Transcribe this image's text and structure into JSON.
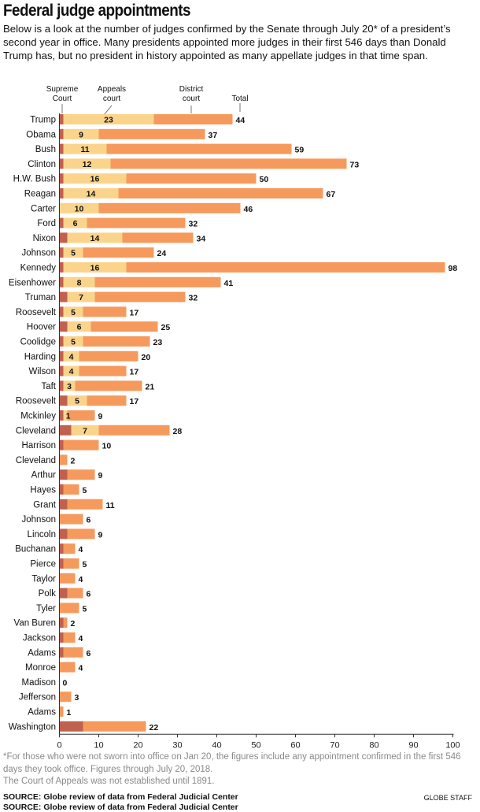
{
  "title": "Federal judge appointments",
  "subtitle": "Below is a look at the number of judges confirmed by the Senate through July 20* of a president’s second year in office. Many presidents appointed more judges in their first 546 days than Donald Trump has, but no president in history appointed as many appellate judges in that time span.",
  "footnote": "*For those who were not sworn into office on Jan 20, the figures include any appointment confirmed in the first 546 days they took office. Figures through July 20, 2018.\nThe Court of Appeals was not established until 1891.",
  "source": "SOURCE: Globe review of data from Federal Judicial Center",
  "source_clipped": "SOURCE: Globe review of data from Federal Judicial Center",
  "credit": "GLOBE STAFF",
  "colors": {
    "supreme": "#c0614d",
    "appeals": "#fbd48c",
    "district": "#f59a5c",
    "axis": "#333333"
  },
  "chart_data": {
    "type": "bar",
    "orientation": "horizontal",
    "stacked": true,
    "title": "Federal judge appointments",
    "column_headers": {
      "supreme": "Supreme\nCourt",
      "appeals": "Appeals\ncourt",
      "district": "District\ncourt",
      "total": "Total"
    },
    "xlim": [
      0,
      100
    ],
    "xticks": [
      0,
      10,
      20,
      30,
      40,
      50,
      60,
      70,
      80,
      90,
      100
    ],
    "categories": [
      "Trump",
      "Obama",
      "Bush",
      "Clinton",
      "H.W. Bush",
      "Reagan",
      "Carter",
      "Ford",
      "Nixon",
      "Johnson",
      "Kennedy",
      "Eisenhower",
      "Truman",
      "Roosevelt",
      "Hoover",
      "Coolidge",
      "Harding",
      "Wilson",
      "Taft",
      "Roosevelt",
      "Mckinley",
      "Cleveland",
      "Harrison",
      "Cleveland",
      "Arthur",
      "Hayes",
      "Grant",
      "Johnson",
      "Lincoln",
      "Buchanan",
      "Pierce",
      "Taylor",
      "Polk",
      "Tyler",
      "Van Buren",
      "Jackson",
      "Adams",
      "Monroe",
      "Madison",
      "Jefferson",
      "Adams",
      "Washington"
    ],
    "series": [
      {
        "name": "Supreme Court",
        "values": [
          1,
          1,
          1,
          1,
          1,
          1,
          0,
          1,
          2,
          1,
          1,
          1,
          2,
          1,
          2,
          1,
          1,
          1,
          1,
          2,
          1,
          3,
          1,
          0,
          2,
          1,
          2,
          0,
          2,
          1,
          1,
          0,
          2,
          0,
          1,
          1,
          1,
          0,
          0,
          0,
          0,
          6
        ]
      },
      {
        "name": "Appeals court",
        "values": [
          23,
          9,
          11,
          12,
          16,
          14,
          10,
          6,
          14,
          5,
          16,
          8,
          7,
          5,
          6,
          5,
          4,
          4,
          3,
          5,
          1,
          7,
          null,
          null,
          null,
          null,
          null,
          null,
          null,
          null,
          null,
          null,
          null,
          null,
          null,
          null,
          null,
          null,
          null,
          null,
          null,
          null
        ]
      },
      {
        "name": "District court",
        "values": [
          20,
          27,
          47,
          60,
          33,
          52,
          36,
          25,
          18,
          18,
          81,
          32,
          23,
          11,
          17,
          17,
          15,
          12,
          17,
          10,
          7,
          18,
          9,
          2,
          7,
          4,
          9,
          6,
          7,
          3,
          4,
          4,
          4,
          5,
          1,
          3,
          5,
          4,
          0,
          3,
          1,
          16
        ]
      }
    ],
    "appeals_labels": [
      "23",
      "9",
      "11",
      "12",
      "16",
      "14",
      "10",
      "6",
      "14",
      "5",
      "16",
      "8",
      "7",
      "5",
      "6",
      "5",
      "4",
      "4",
      "3",
      "5",
      "1",
      "7",
      "",
      "",
      "",
      "",
      "",
      "",
      "",
      "",
      "",
      "",
      "",
      "",
      "",
      "",
      "",
      "",
      "",
      "",
      "",
      ""
    ],
    "totals": [
      44,
      37,
      59,
      73,
      50,
      67,
      46,
      32,
      34,
      24,
      98,
      41,
      32,
      17,
      25,
      23,
      20,
      17,
      21,
      17,
      9,
      28,
      10,
      2,
      9,
      5,
      11,
      6,
      9,
      4,
      5,
      4,
      6,
      5,
      2,
      4,
      6,
      4,
      0,
      3,
      1,
      22
    ]
  }
}
